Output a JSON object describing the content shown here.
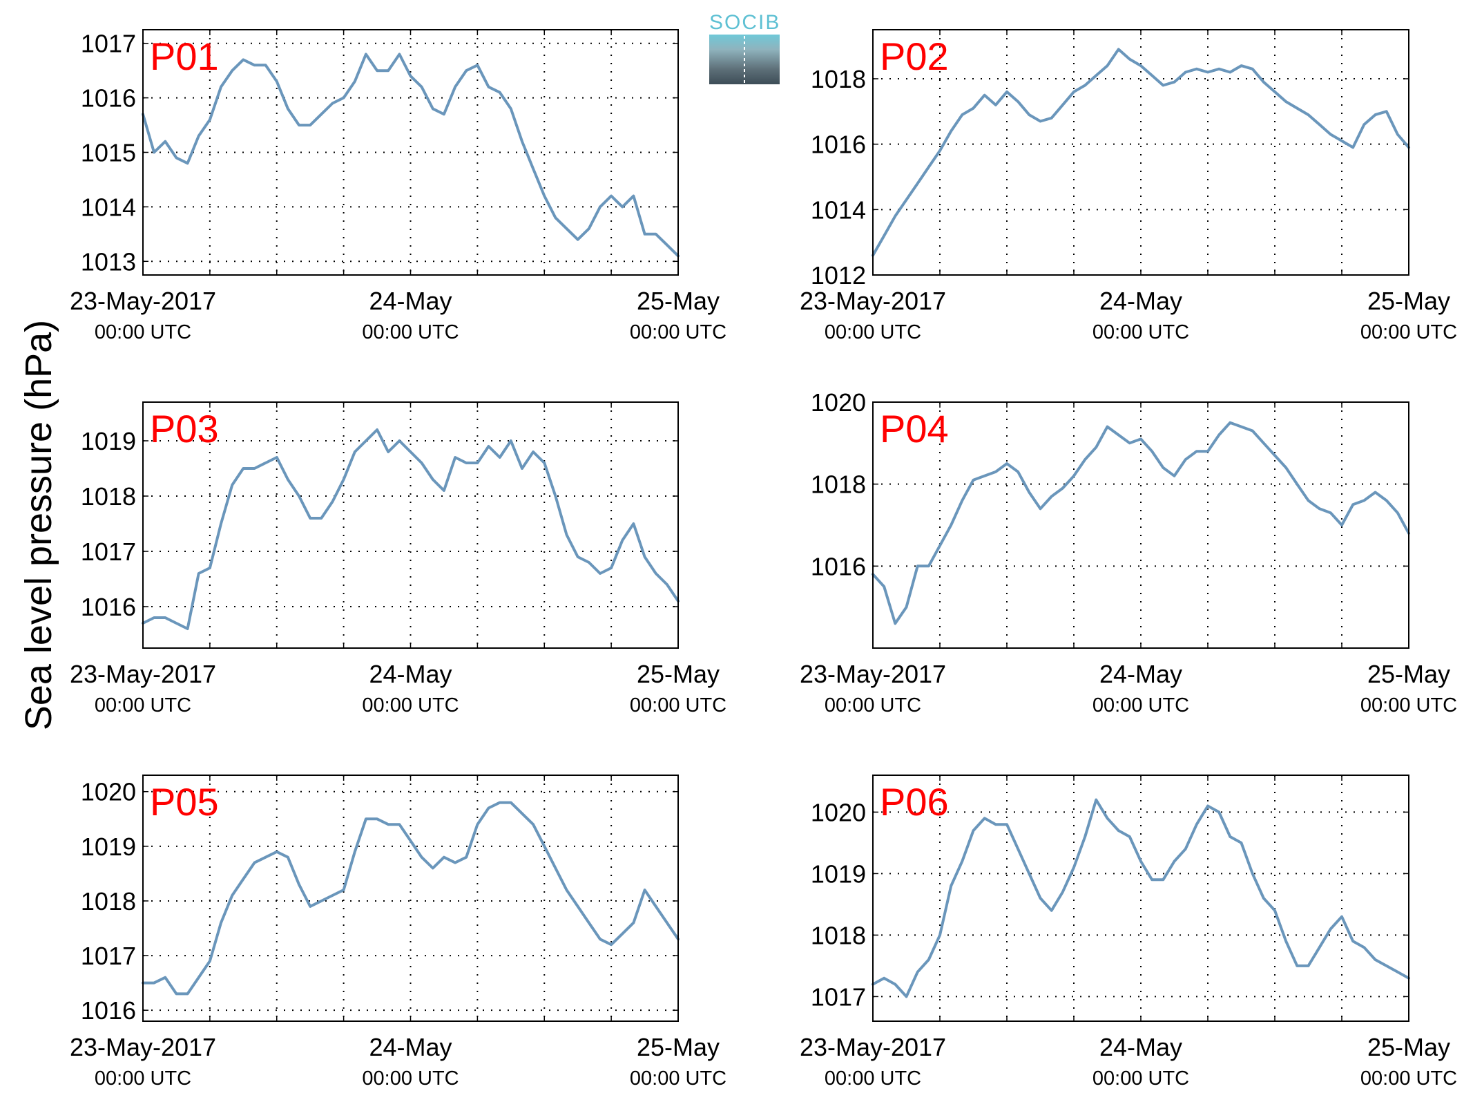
{
  "ylabel": "Sea level pressure (hPa)",
  "logo_text": "SOCIB",
  "colors": {
    "line": "#6a96bb",
    "panel_label": "#ff0000",
    "axis": "#000000",
    "logo": "#5ec0d3"
  },
  "chart_data": [
    {
      "type": "line",
      "title": "P01",
      "x_ticks": [
        {
          "line1": "23-May-2017",
          "line2": "00:00 UTC"
        },
        {
          "line1": "24-May",
          "line2": "00:00 UTC"
        },
        {
          "line1": "25-May",
          "line2": "00:00 UTC"
        }
      ],
      "xlim": [
        0,
        48
      ],
      "ylim": [
        1012.75,
        1017.25
      ],
      "yticks": [
        1013,
        1014,
        1015,
        1016,
        1017
      ],
      "grid": true,
      "x": [
        0,
        1,
        2,
        3,
        4,
        5,
        6,
        7,
        8,
        9,
        10,
        11,
        12,
        13,
        14,
        15,
        16,
        17,
        18,
        19,
        20,
        21,
        22,
        23,
        24,
        25,
        26,
        27,
        28,
        29,
        30,
        31,
        32,
        33,
        34,
        35,
        36,
        37,
        38,
        39,
        40,
        41,
        42,
        43,
        44,
        45,
        46,
        47,
        48
      ],
      "series": [
        {
          "values": [
            1015.7,
            1015.0,
            1015.2,
            1014.9,
            1014.8,
            1015.3,
            1015.6,
            1016.2,
            1016.5,
            1016.7,
            1016.6,
            1016.6,
            1016.3,
            1015.8,
            1015.5,
            1015.5,
            1015.7,
            1015.9,
            1016.0,
            1016.3,
            1016.8,
            1016.5,
            1016.5,
            1016.8,
            1016.4,
            1016.2,
            1015.8,
            1015.7,
            1016.2,
            1016.5,
            1016.6,
            1016.2,
            1016.1,
            1015.8,
            1015.2,
            1014.7,
            1014.2,
            1013.8,
            1013.6,
            1013.4,
            1013.6,
            1014.0,
            1014.2,
            1014.0,
            1014.2,
            1013.5,
            1013.5,
            1013.3,
            1013.1
          ]
        }
      ]
    },
    {
      "type": "line",
      "title": "P02",
      "x_ticks": [
        {
          "line1": "23-May-2017",
          "line2": "00:00 UTC"
        },
        {
          "line1": "24-May",
          "line2": "00:00 UTC"
        },
        {
          "line1": "25-May",
          "line2": "00:00 UTC"
        }
      ],
      "xlim": [
        0,
        48
      ],
      "ylim": [
        1012,
        1019.5
      ],
      "yticks": [
        1012,
        1014,
        1016,
        1018
      ],
      "grid": true,
      "x": [
        0,
        1,
        2,
        3,
        4,
        5,
        6,
        7,
        8,
        9,
        10,
        11,
        12,
        13,
        14,
        15,
        16,
        17,
        18,
        19,
        20,
        21,
        22,
        23,
        24,
        25,
        26,
        27,
        28,
        29,
        30,
        31,
        32,
        33,
        34,
        35,
        36,
        37,
        38,
        39,
        40,
        41,
        42,
        43,
        44,
        45,
        46,
        47,
        48
      ],
      "series": [
        {
          "values": [
            1012.6,
            1013.2,
            1013.8,
            1014.3,
            1014.8,
            1015.3,
            1015.8,
            1016.4,
            1016.9,
            1017.1,
            1017.5,
            1017.2,
            1017.6,
            1017.3,
            1016.9,
            1016.7,
            1016.8,
            1017.2,
            1017.6,
            1017.8,
            1018.1,
            1018.4,
            1018.9,
            1018.6,
            1018.4,
            1018.1,
            1017.8,
            1017.9,
            1018.2,
            1018.3,
            1018.2,
            1018.3,
            1018.2,
            1018.4,
            1018.3,
            1017.9,
            1017.6,
            1017.3,
            1017.1,
            1016.9,
            1016.6,
            1016.3,
            1016.1,
            1015.9,
            1016.6,
            1016.9,
            1017.0,
            1016.3,
            1015.9
          ]
        }
      ]
    },
    {
      "type": "line",
      "title": "P03",
      "x_ticks": [
        {
          "line1": "23-May-2017",
          "line2": "00:00 UTC"
        },
        {
          "line1": "24-May",
          "line2": "00:00 UTC"
        },
        {
          "line1": "25-May",
          "line2": "00:00 UTC"
        }
      ],
      "xlim": [
        0,
        48
      ],
      "ylim": [
        1015.25,
        1019.7
      ],
      "yticks": [
        1016,
        1017,
        1018,
        1019
      ],
      "grid": true,
      "x": [
        0,
        1,
        2,
        3,
        4,
        5,
        6,
        7,
        8,
        9,
        10,
        11,
        12,
        13,
        14,
        15,
        16,
        17,
        18,
        19,
        20,
        21,
        22,
        23,
        24,
        25,
        26,
        27,
        28,
        29,
        30,
        31,
        32,
        33,
        34,
        35,
        36,
        37,
        38,
        39,
        40,
        41,
        42,
        43,
        44,
        45,
        46,
        47,
        48
      ],
      "series": [
        {
          "values": [
            1015.7,
            1015.8,
            1015.8,
            1015.7,
            1015.6,
            1016.6,
            1016.7,
            1017.5,
            1018.2,
            1018.5,
            1018.5,
            1018.6,
            1018.7,
            1018.3,
            1018.0,
            1017.6,
            1017.6,
            1017.9,
            1018.3,
            1018.8,
            1019.0,
            1019.2,
            1018.8,
            1019.0,
            1018.8,
            1018.6,
            1018.3,
            1018.1,
            1018.7,
            1018.6,
            1018.6,
            1018.9,
            1018.7,
            1019.0,
            1018.5,
            1018.8,
            1018.6,
            1018.0,
            1017.3,
            1016.9,
            1016.8,
            1016.6,
            1016.7,
            1017.2,
            1017.5,
            1016.9,
            1016.6,
            1016.4,
            1016.1
          ]
        }
      ]
    },
    {
      "type": "line",
      "title": "P04",
      "x_ticks": [
        {
          "line1": "23-May-2017",
          "line2": "00:00 UTC"
        },
        {
          "line1": "24-May",
          "line2": "00:00 UTC"
        },
        {
          "line1": "25-May",
          "line2": "00:00 UTC"
        }
      ],
      "xlim": [
        0,
        48
      ],
      "ylim": [
        1014,
        1020
      ],
      "yticks": [
        1016,
        1018,
        1020
      ],
      "grid": true,
      "x": [
        0,
        1,
        2,
        3,
        4,
        5,
        6,
        7,
        8,
        9,
        10,
        11,
        12,
        13,
        14,
        15,
        16,
        17,
        18,
        19,
        20,
        21,
        22,
        23,
        24,
        25,
        26,
        27,
        28,
        29,
        30,
        31,
        32,
        33,
        34,
        35,
        36,
        37,
        38,
        39,
        40,
        41,
        42,
        43,
        44,
        45,
        46,
        47,
        48
      ],
      "series": [
        {
          "values": [
            1015.8,
            1015.5,
            1014.6,
            1015.0,
            1016.0,
            1016.0,
            1016.5,
            1017.0,
            1017.6,
            1018.1,
            1018.2,
            1018.3,
            1018.5,
            1018.3,
            1017.8,
            1017.4,
            1017.7,
            1017.9,
            1018.2,
            1018.6,
            1018.9,
            1019.4,
            1019.2,
            1019.0,
            1019.1,
            1018.8,
            1018.4,
            1018.2,
            1018.6,
            1018.8,
            1018.8,
            1019.2,
            1019.5,
            1019.4,
            1019.3,
            1019.0,
            1018.7,
            1018.4,
            1018.0,
            1017.6,
            1017.4,
            1017.3,
            1017.0,
            1017.5,
            1017.6,
            1017.8,
            1017.6,
            1017.3,
            1016.8
          ]
        }
      ]
    },
    {
      "type": "line",
      "title": "P05",
      "x_ticks": [
        {
          "line1": "23-May-2017",
          "line2": "00:00 UTC"
        },
        {
          "line1": "24-May",
          "line2": "00:00 UTC"
        },
        {
          "line1": "25-May",
          "line2": "00:00 UTC"
        }
      ],
      "xlim": [
        0,
        48
      ],
      "ylim": [
        1015.8,
        1020.3
      ],
      "yticks": [
        1016,
        1017,
        1018,
        1019,
        1020
      ],
      "grid": true,
      "x": [
        0,
        1,
        2,
        3,
        4,
        5,
        6,
        7,
        8,
        9,
        10,
        11,
        12,
        13,
        14,
        15,
        16,
        17,
        18,
        19,
        20,
        21,
        22,
        23,
        24,
        25,
        26,
        27,
        28,
        29,
        30,
        31,
        32,
        33,
        34,
        35,
        36,
        37,
        38,
        39,
        40,
        41,
        42,
        43,
        44,
        45,
        46,
        47,
        48
      ],
      "series": [
        {
          "values": [
            1016.5,
            1016.5,
            1016.6,
            1016.3,
            1016.3,
            1016.6,
            1016.9,
            1017.6,
            1018.1,
            1018.4,
            1018.7,
            1018.8,
            1018.9,
            1018.8,
            1018.3,
            1017.9,
            1018.0,
            1018.1,
            1018.2,
            1018.9,
            1019.5,
            1019.5,
            1019.4,
            1019.4,
            1019.1,
            1018.8,
            1018.6,
            1018.8,
            1018.7,
            1018.8,
            1019.4,
            1019.7,
            1019.8,
            1019.8,
            1019.6,
            1019.4,
            1019.0,
            1018.6,
            1018.2,
            1017.9,
            1017.6,
            1017.3,
            1017.2,
            1017.4,
            1017.6,
            1018.2,
            1017.9,
            1017.6,
            1017.3
          ]
        }
      ]
    },
    {
      "type": "line",
      "title": "P06",
      "x_ticks": [
        {
          "line1": "23-May-2017",
          "line2": "00:00 UTC"
        },
        {
          "line1": "24-May",
          "line2": "00:00 UTC"
        },
        {
          "line1": "25-May",
          "line2": "00:00 UTC"
        }
      ],
      "xlim": [
        0,
        48
      ],
      "ylim": [
        1016.6,
        1020.6
      ],
      "yticks": [
        1017,
        1018,
        1019,
        1020
      ],
      "grid": true,
      "x": [
        0,
        1,
        2,
        3,
        4,
        5,
        6,
        7,
        8,
        9,
        10,
        11,
        12,
        13,
        14,
        15,
        16,
        17,
        18,
        19,
        20,
        21,
        22,
        23,
        24,
        25,
        26,
        27,
        28,
        29,
        30,
        31,
        32,
        33,
        34,
        35,
        36,
        37,
        38,
        39,
        40,
        41,
        42,
        43,
        44,
        45,
        46,
        47,
        48
      ],
      "series": [
        {
          "values": [
            1017.2,
            1017.3,
            1017.2,
            1017.0,
            1017.4,
            1017.6,
            1018.0,
            1018.8,
            1019.2,
            1019.7,
            1019.9,
            1019.8,
            1019.8,
            1019.4,
            1019.0,
            1018.6,
            1018.4,
            1018.7,
            1019.1,
            1019.6,
            1020.2,
            1019.9,
            1019.7,
            1019.6,
            1019.2,
            1018.9,
            1018.9,
            1019.2,
            1019.4,
            1019.8,
            1020.1,
            1020.0,
            1019.6,
            1019.5,
            1019.0,
            1018.6,
            1018.4,
            1017.9,
            1017.5,
            1017.5,
            1017.8,
            1018.1,
            1018.3,
            1017.9,
            1017.8,
            1017.6,
            1017.5,
            1017.4,
            1017.3
          ]
        }
      ]
    }
  ]
}
